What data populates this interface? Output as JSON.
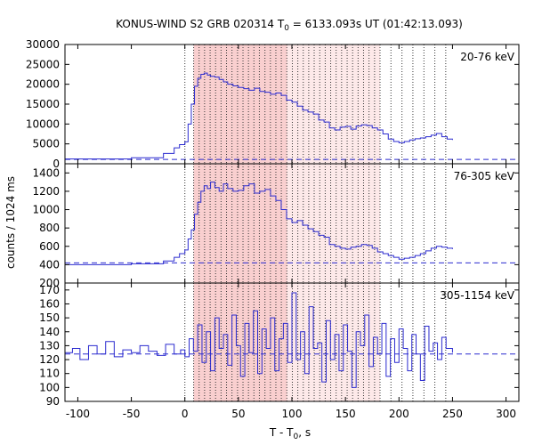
{
  "chart_data": {
    "type": "line",
    "title": "KONUS-WIND S2 GRB 020314 T",
    "title_subscript": "0",
    "title_suffix": " = 6133.093s UT (01:42:13.093)",
    "xlabel": "T - T",
    "xlabel_subscript": "0",
    "xlabel_suffix": ", s",
    "ylabel": "counts / 1024 ms",
    "xlim": [
      -112,
      312
    ],
    "xticks": [
      -100,
      -50,
      0,
      50,
      100,
      150,
      200,
      250,
      300
    ],
    "shaded_region": [
      8.2,
      182.3
    ],
    "dark_shaded_region": [
      8.2,
      95.5
    ],
    "vertical_dotted_lines": [
      0,
      8.2,
      13.3,
      18.4,
      23.6,
      28.7,
      33.8,
      38.9,
      44.0,
      49.2,
      54.3,
      59.4,
      64.5,
      69.6,
      74.8,
      79.9,
      85.0,
      90.1,
      95.2,
      100.4,
      105.5,
      110.6,
      115.7,
      120.8,
      126.0,
      131.1,
      136.2,
      141.3,
      146.4,
      151.6,
      156.7,
      161.8,
      166.9,
      172.0,
      177.2,
      182.3,
      192.5,
      202.8,
      213.0,
      223.3,
      233.5,
      243.7
    ],
    "series_color": "#2b2bcf",
    "panels": [
      {
        "name": "20-76 keV",
        "ylim": [
          0,
          30000
        ],
        "yticks": [
          0,
          5000,
          10000,
          15000,
          20000,
          25000,
          30000
        ],
        "background": 1100,
        "x": [
          -112,
          -50,
          -20,
          -10,
          -5,
          0,
          3,
          6,
          9,
          12,
          15,
          18,
          21,
          24,
          28,
          32,
          36,
          40,
          45,
          50,
          55,
          60,
          65,
          70,
          75,
          80,
          85,
          90,
          95,
          100,
          105,
          110,
          115,
          120,
          125,
          130,
          135,
          140,
          145,
          150,
          155,
          160,
          165,
          170,
          175,
          180,
          185,
          190,
          195,
          200,
          205,
          210,
          215,
          220,
          225,
          230,
          235,
          240,
          245,
          250
        ],
        "y": [
          1200,
          1500,
          2600,
          4000,
          4800,
          5500,
          10000,
          15000,
          19500,
          21500,
          22500,
          22800,
          22300,
          22000,
          21800,
          21200,
          20600,
          20000,
          19600,
          19200,
          18900,
          18500,
          19000,
          18200,
          18000,
          17500,
          17800,
          17200,
          16000,
          15500,
          14500,
          13500,
          13000,
          12500,
          11000,
          10500,
          9000,
          8500,
          9200,
          9400,
          8700,
          9500,
          9800,
          9600,
          9000,
          8500,
          7500,
          6200,
          5600,
          5300,
          5600,
          6000,
          6300,
          6500,
          6800,
          7200,
          7600,
          6800,
          6200,
          6000
        ]
      },
      {
        "name": "76-305 keV",
        "ylim": [
          200,
          1500
        ],
        "yticks": [
          200,
          400,
          600,
          800,
          1000,
          1200,
          1400
        ],
        "background": 420,
        "x": [
          -112,
          -50,
          -20,
          -10,
          -5,
          0,
          3,
          6,
          9,
          12,
          15,
          18,
          21,
          24,
          28,
          32,
          36,
          40,
          45,
          50,
          55,
          60,
          65,
          70,
          75,
          80,
          85,
          90,
          95,
          100,
          105,
          110,
          115,
          120,
          125,
          130,
          135,
          140,
          145,
          150,
          155,
          160,
          165,
          170,
          175,
          180,
          185,
          190,
          195,
          200,
          205,
          210,
          215,
          220,
          225,
          230,
          235,
          240,
          245,
          250
        ],
        "y": [
          400,
          410,
          440,
          480,
          520,
          560,
          680,
          780,
          950,
          1080,
          1200,
          1260,
          1230,
          1300,
          1240,
          1200,
          1280,
          1230,
          1200,
          1210,
          1260,
          1280,
          1180,
          1200,
          1220,
          1150,
          1100,
          1000,
          900,
          860,
          880,
          830,
          790,
          760,
          720,
          700,
          620,
          600,
          580,
          570,
          590,
          600,
          620,
          610,
          580,
          540,
          520,
          500,
          480,
          460,
          470,
          480,
          500,
          520,
          550,
          580,
          600,
          590,
          580,
          570
        ]
      },
      {
        "name": "305-1154 keV",
        "ylim": [
          90,
          175
        ],
        "yticks": [
          90,
          100,
          110,
          120,
          130,
          140,
          150,
          160,
          170
        ],
        "background": 124,
        "x": [
          -112,
          -105,
          -98,
          -90,
          -82,
          -74,
          -66,
          -58,
          -50,
          -42,
          -34,
          -26,
          -18,
          -10,
          -4,
          0,
          4,
          8,
          12,
          16,
          20,
          24,
          28,
          32,
          36,
          40,
          44,
          48,
          52,
          56,
          60,
          64,
          68,
          72,
          76,
          80,
          84,
          88,
          92,
          96,
          100,
          104,
          108,
          112,
          116,
          120,
          124,
          128,
          132,
          136,
          140,
          144,
          148,
          152,
          156,
          160,
          164,
          168,
          172,
          176,
          180,
          184,
          188,
          192,
          196,
          200,
          204,
          208,
          212,
          216,
          220,
          224,
          228,
          232,
          236,
          240,
          244,
          250
        ],
        "y": [
          125,
          128,
          120,
          130,
          124,
          133,
          122,
          127,
          125,
          130,
          126,
          123,
          131,
          124,
          127,
          122,
          135,
          126,
          145,
          118,
          140,
          112,
          150,
          128,
          138,
          116,
          152,
          130,
          108,
          146,
          125,
          155,
          110,
          142,
          128,
          150,
          112,
          135,
          146,
          118,
          168,
          120,
          140,
          110,
          158,
          128,
          132,
          104,
          148,
          120,
          138,
          112,
          145,
          126,
          100,
          140,
          130,
          152,
          115,
          136,
          124,
          146,
          108,
          135,
          118,
          142,
          128,
          112,
          138,
          124,
          105,
          144,
          126,
          132,
          120,
          136,
          128,
          125
        ]
      }
    ]
  }
}
